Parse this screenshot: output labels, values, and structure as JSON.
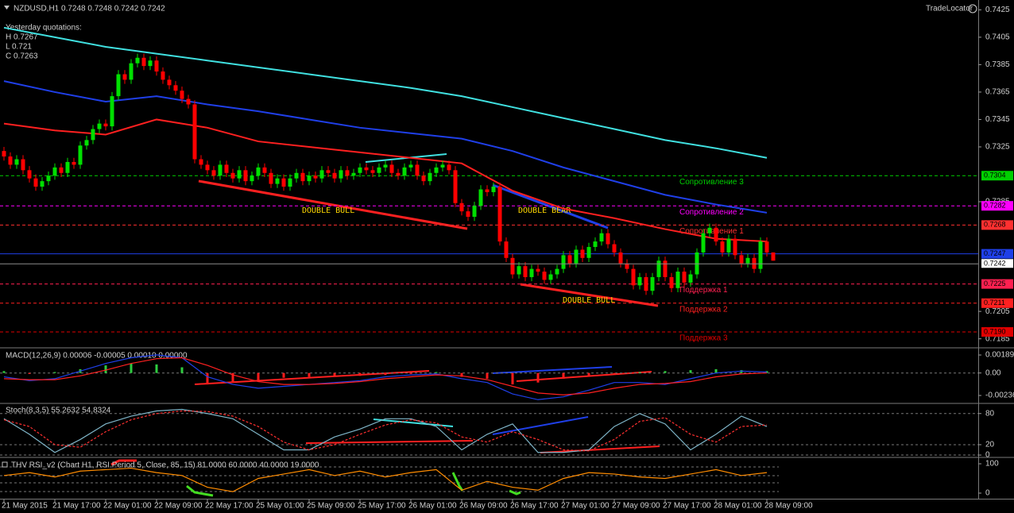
{
  "chart_data": [
    {
      "type": "candlestick",
      "title": "NZDUSD,H1  0.7248 0.7248 0.7242 0.7242",
      "brand": "TradeLocator",
      "notes": [
        "Yesterday quotations:",
        "H 0.7267",
        "L 0.721",
        "C 0.7263"
      ],
      "annotations": [
        "DOUBLE BULL",
        "DOUBLE BEAR",
        "DOUBLE BULL"
      ],
      "categories": [
        "21 May 2015",
        "21 May 17:00",
        "22 May 01:00",
        "22 May 09:00",
        "22 May 17:00",
        "25 May 01:00",
        "25 May 09:00",
        "25 May 17:00",
        "26 May 01:00",
        "26 May 09:00",
        "26 May 17:00",
        "27 May 01:00",
        "27 May 09:00",
        "27 May 17:00",
        "28 May 01:00",
        "28 May 09:00"
      ],
      "up_color": "#00e000",
      "down_color": "#ff0000",
      "ylim": [
        0.7179,
        0.7431
      ],
      "yticks": [
        0.7425,
        0.7405,
        0.7385,
        0.7365,
        0.7345,
        0.7325,
        0.7285,
        0.7205,
        0.7185
      ],
      "open": [
        0.7322,
        0.7318,
        0.7312,
        0.7316,
        0.7308,
        0.7302,
        0.7296,
        0.73,
        0.7304,
        0.731,
        0.7306,
        0.7314,
        0.7312,
        0.7326,
        0.733,
        0.7338,
        0.7342,
        0.734,
        0.7362,
        0.7378,
        0.7374,
        0.7386,
        0.739,
        0.7384,
        0.7388,
        0.738,
        0.7374,
        0.737,
        0.7366,
        0.736,
        0.7356,
        0.7316,
        0.7312,
        0.7308,
        0.7304,
        0.7312,
        0.7306,
        0.7302,
        0.7308,
        0.73,
        0.7304,
        0.731,
        0.7306,
        0.7298,
        0.7302,
        0.7296,
        0.7302,
        0.7306,
        0.73,
        0.7304,
        0.7302,
        0.7308,
        0.7306,
        0.7302,
        0.7308,
        0.7304,
        0.7306,
        0.731,
        0.7308,
        0.7306,
        0.731,
        0.7312,
        0.7306,
        0.7304,
        0.731,
        0.7312,
        0.7304,
        0.73,
        0.7306,
        0.731,
        0.7312,
        0.7308,
        0.7284,
        0.7278,
        0.7274,
        0.7282,
        0.7294,
        0.7292,
        0.7296,
        0.7256,
        0.7244,
        0.7232,
        0.7238,
        0.723,
        0.7236,
        0.7234,
        0.7228,
        0.7232,
        0.7236,
        0.7246,
        0.724,
        0.725,
        0.7244,
        0.7252,
        0.7256,
        0.7262,
        0.7254,
        0.7248,
        0.724,
        0.7236,
        0.7224,
        0.723,
        0.722,
        0.723,
        0.7242,
        0.723,
        0.7222,
        0.7234,
        0.7226,
        0.7232,
        0.7248,
        0.7262,
        0.7266,
        0.7256,
        0.7248,
        0.7258,
        0.7246,
        0.724,
        0.7244,
        0.7236,
        0.7256,
        0.7248
      ],
      "high": [
        0.7325,
        0.7321,
        0.7319,
        0.7319,
        0.7311,
        0.7305,
        0.7303,
        0.7307,
        0.7313,
        0.7313,
        0.7317,
        0.7317,
        0.7329,
        0.7333,
        0.7341,
        0.7345,
        0.7345,
        0.7365,
        0.7381,
        0.7381,
        0.7389,
        0.7393,
        0.7393,
        0.7391,
        0.7391,
        0.7383,
        0.7377,
        0.7373,
        0.7369,
        0.7363,
        0.7359,
        0.7319,
        0.7315,
        0.7311,
        0.7315,
        0.7315,
        0.7309,
        0.7311,
        0.7311,
        0.7307,
        0.7313,
        0.7313,
        0.7309,
        0.7305,
        0.7305,
        0.7305,
        0.7309,
        0.7309,
        0.7307,
        0.7307,
        0.7311,
        0.7311,
        0.7309,
        0.7311,
        0.7311,
        0.7309,
        0.7313,
        0.7313,
        0.7311,
        0.7313,
        0.7315,
        0.7315,
        0.7309,
        0.7313,
        0.7315,
        0.7315,
        0.7307,
        0.7309,
        0.7313,
        0.7315,
        0.7315,
        0.7311,
        0.7287,
        0.7281,
        0.7285,
        0.7297,
        0.7297,
        0.7299,
        0.7299,
        0.7259,
        0.7247,
        0.7241,
        0.7241,
        0.7239,
        0.7239,
        0.7237,
        0.7235,
        0.7239,
        0.7249,
        0.7249,
        0.7253,
        0.7253,
        0.7255,
        0.7259,
        0.7265,
        0.7265,
        0.7257,
        0.7251,
        0.7243,
        0.7239,
        0.7233,
        0.7233,
        0.7233,
        0.7245,
        0.7245,
        0.7233,
        0.7237,
        0.7237,
        0.7235,
        0.7251,
        0.7265,
        0.7269,
        0.7269,
        0.7259,
        0.7261,
        0.7261,
        0.7249,
        0.7247,
        0.7247,
        0.7259,
        0.7259,
        0.7248
      ],
      "low": [
        0.7315,
        0.7309,
        0.7309,
        0.7305,
        0.7299,
        0.7293,
        0.7293,
        0.7297,
        0.7301,
        0.7303,
        0.7303,
        0.7309,
        0.7309,
        0.7323,
        0.7327,
        0.7335,
        0.7337,
        0.7337,
        0.7359,
        0.7371,
        0.7371,
        0.7383,
        0.7381,
        0.7381,
        0.7377,
        0.7371,
        0.7367,
        0.7363,
        0.7357,
        0.7353,
        0.7313,
        0.7309,
        0.7305,
        0.7301,
        0.7301,
        0.7303,
        0.7299,
        0.7299,
        0.7297,
        0.7297,
        0.7301,
        0.7303,
        0.7295,
        0.7295,
        0.7293,
        0.7293,
        0.7299,
        0.7297,
        0.7297,
        0.7299,
        0.7299,
        0.7303,
        0.7299,
        0.7299,
        0.7301,
        0.7301,
        0.7303,
        0.7305,
        0.7303,
        0.7303,
        0.7307,
        0.7303,
        0.7301,
        0.7301,
        0.7307,
        0.7301,
        0.7297,
        0.7297,
        0.7303,
        0.7307,
        0.7305,
        0.7281,
        0.7275,
        0.7271,
        0.7271,
        0.7279,
        0.7289,
        0.7289,
        0.7253,
        0.7241,
        0.7229,
        0.7229,
        0.7227,
        0.7227,
        0.7231,
        0.7225,
        0.7225,
        0.7229,
        0.7233,
        0.7237,
        0.7237,
        0.7241,
        0.7241,
        0.7249,
        0.7253,
        0.7251,
        0.7245,
        0.7237,
        0.7233,
        0.7221,
        0.7221,
        0.7217,
        0.7217,
        0.7227,
        0.7227,
        0.7219,
        0.7219,
        0.7223,
        0.7223,
        0.7229,
        0.7245,
        0.7259,
        0.7253,
        0.7245,
        0.7245,
        0.7243,
        0.7237,
        0.7237,
        0.7233,
        0.7233,
        0.7245,
        0.7242
      ],
      "close": [
        0.7318,
        0.7312,
        0.7316,
        0.7308,
        0.7302,
        0.7296,
        0.73,
        0.7304,
        0.731,
        0.7306,
        0.7314,
        0.7312,
        0.7326,
        0.733,
        0.7338,
        0.7342,
        0.734,
        0.7362,
        0.7378,
        0.7374,
        0.7386,
        0.739,
        0.7384,
        0.7388,
        0.738,
        0.7374,
        0.737,
        0.7366,
        0.736,
        0.7356,
        0.7316,
        0.7312,
        0.7308,
        0.7304,
        0.7312,
        0.7306,
        0.7302,
        0.7308,
        0.73,
        0.7304,
        0.731,
        0.7306,
        0.7298,
        0.7302,
        0.7296,
        0.7302,
        0.7306,
        0.73,
        0.7304,
        0.7302,
        0.7308,
        0.7306,
        0.7302,
        0.7308,
        0.7304,
        0.7306,
        0.731,
        0.7308,
        0.7306,
        0.731,
        0.7312,
        0.7306,
        0.7304,
        0.731,
        0.7312,
        0.7304,
        0.73,
        0.7306,
        0.731,
        0.7312,
        0.7308,
        0.7284,
        0.7278,
        0.7274,
        0.7282,
        0.7294,
        0.7292,
        0.7296,
        0.7256,
        0.7244,
        0.7232,
        0.7238,
        0.723,
        0.7236,
        0.7234,
        0.7228,
        0.7232,
        0.7236,
        0.7246,
        0.724,
        0.725,
        0.7244,
        0.7252,
        0.7256,
        0.7262,
        0.7254,
        0.7248,
        0.724,
        0.7236,
        0.7224,
        0.723,
        0.722,
        0.723,
        0.7242,
        0.723,
        0.7222,
        0.7234,
        0.7226,
        0.7232,
        0.7248,
        0.7262,
        0.7266,
        0.7256,
        0.7248,
        0.7258,
        0.7246,
        0.724,
        0.7244,
        0.7236,
        0.7256,
        0.7248,
        0.7242
      ],
      "moving_averages": {
        "x": [
          0,
          8,
          16,
          24,
          32,
          40,
          48,
          56,
          64,
          72,
          80,
          88,
          96,
          104,
          112,
          120
        ],
        "series": [
          {
            "color": "#40e0e0",
            "values": [
              0.7412,
              0.7405,
              0.7398,
              0.7393,
              0.7388,
              0.7383,
              0.7378,
              0.7373,
              0.7368,
              0.7362,
              0.7354,
              0.7346,
              0.7338,
              0.733,
              0.7324,
              0.7317
            ]
          },
          {
            "color": "#1f3fe8",
            "values": [
              0.7373,
              0.7365,
              0.7358,
              0.7362,
              0.7356,
              0.7351,
              0.7345,
              0.7339,
              0.7335,
              0.7331,
              0.7322,
              0.731,
              0.73,
              0.729,
              0.7283,
              0.7277
            ]
          },
          {
            "color": "#ff2020",
            "values": [
              0.7342,
              0.7337,
              0.7334,
              0.7345,
              0.7339,
              0.7329,
              0.7325,
              0.7321,
              0.7317,
              0.7313,
              0.7293,
              0.728,
              0.7273,
              0.7265,
              0.7258,
              0.7256
            ]
          }
        ]
      },
      "levels": [
        {
          "value": 0.7304,
          "text": "Сопротивление 3",
          "color": "#00d000"
        },
        {
          "value": 0.7282,
          "text": "Сопротивление 2",
          "color": "#ff00ff"
        },
        {
          "value": 0.7268,
          "text": "Сопротивление 1",
          "color": "#ff3030"
        },
        {
          "value": 0.7247,
          "color": "#1f3fe8"
        },
        {
          "value": 0.7225,
          "text": "Поддержка 1",
          "color": "#ff2050"
        },
        {
          "value": 0.7211,
          "text": "Поддержка 2",
          "color": "#ff2020"
        },
        {
          "value": 0.719,
          "label": "0.7190",
          "text": "Поддержка 3",
          "color": "#e00000"
        }
      ],
      "last_price": 0.7242
    },
    {
      "type": "macd",
      "title": "MACD(12,26,9) 0.00006 -0.00005 0.00010 0.00000",
      "ylim": [
        -0.00311,
        0.00256
      ],
      "yticks": [
        0.00189,
        {
          "value": 0,
          "label": "0.00"
        },
        -0.00236
      ],
      "up_color": "#2ecc40",
      "down_color": "#ff1a1a",
      "x": [
        0,
        4,
        8,
        12,
        16,
        20,
        24,
        28,
        32,
        36,
        40,
        44,
        48,
        52,
        56,
        60,
        64,
        68,
        72,
        76,
        80,
        84,
        88,
        92,
        96,
        100,
        104,
        108,
        112,
        116,
        120
      ],
      "histogram": [
        0.0002,
        -0.0001,
        0.0001,
        0.0004,
        0.0008,
        0.001,
        0.0009,
        0.0006,
        -0.0012,
        -0.001,
        -0.0008,
        -0.0005,
        -0.0004,
        -0.0003,
        -0.0003,
        -0.0002,
        -0.0001,
        0.0001,
        -0.0004,
        -0.0006,
        -0.0012,
        -0.001,
        -0.0006,
        -0.0003,
        -0.0001,
        0.0001,
        0.0002,
        0.0003,
        0.0004,
        0.0003,
        0.0002
      ],
      "series": [
        {
          "color": "#1f3fe8",
          "values": [
            -0.0004,
            -0.0008,
            -0.0006,
            0.0002,
            0.001,
            0.0016,
            0.0019,
            0.0016,
            -0.0004,
            -0.0012,
            -0.0016,
            -0.0014,
            -0.0012,
            -0.001,
            -0.0008,
            -0.0004,
            -0.0002,
            -0.0001,
            -0.0006,
            -0.001,
            -0.0022,
            -0.0028,
            -0.0025,
            -0.0018,
            -0.001,
            -0.001,
            -0.0012,
            -0.0006,
            0,
            0.0002,
            0.0001
          ]
        },
        {
          "color": "#ff2020",
          "values": [
            -0.0006,
            -0.0007,
            -0.0007,
            -0.0003,
            0.0003,
            0.001,
            0.0015,
            0.0016,
            0.0008,
            -0.0002,
            -0.0009,
            -0.0012,
            -0.0012,
            -0.0011,
            -0.0009,
            -0.0006,
            -0.0004,
            -0.0002,
            -0.0003,
            -0.0007,
            -0.0014,
            -0.0021,
            -0.0023,
            -0.0021,
            -0.0016,
            -0.0012,
            -0.0011,
            -0.0009,
            -0.0004,
            -0.0001,
            0
          ]
        }
      ]
    },
    {
      "type": "line",
      "title": "Stoch(8,3,5) 55.2632 54.8324",
      "ylim": [
        -3,
        98
      ],
      "yticks": [
        80,
        20,
        0
      ],
      "grid": true,
      "x": [
        0,
        4,
        8,
        12,
        16,
        20,
        24,
        28,
        32,
        36,
        40,
        44,
        48,
        52,
        56,
        60,
        64,
        68,
        72,
        76,
        80,
        84,
        88,
        92,
        96,
        100,
        104,
        108,
        112,
        116,
        120
      ],
      "series": [
        {
          "color": "#7fb5c8",
          "values": [
            70,
            40,
            5,
            30,
            60,
            75,
            85,
            88,
            80,
            70,
            40,
            10,
            10,
            35,
            50,
            70,
            70,
            55,
            10,
            40,
            60,
            5,
            5,
            10,
            55,
            80,
            60,
            10,
            40,
            75,
            55
          ]
        },
        {
          "color": "#ff3030",
          "dashed": true,
          "values": [
            68,
            55,
            20,
            15,
            45,
            68,
            80,
            85,
            84,
            75,
            55,
            25,
            10,
            20,
            40,
            58,
            68,
            62,
            35,
            25,
            45,
            30,
            10,
            8,
            30,
            65,
            72,
            40,
            25,
            55,
            58
          ]
        }
      ]
    },
    {
      "type": "line",
      "title": "THV RSI_v2  (Chart H1, RSI Period 5, Close, 85, 15)  81.0000 60.0000 40.0000 19.0000",
      "ylim": [
        -19,
        119
      ],
      "yticks": [
        100,
        0
      ],
      "grid": false,
      "x": [
        0,
        4,
        8,
        12,
        16,
        20,
        24,
        28,
        32,
        36,
        40,
        44,
        48,
        52,
        56,
        60,
        64,
        68,
        72,
        76,
        80,
        84,
        88,
        92,
        96,
        100,
        104,
        108,
        112,
        116,
        120
      ],
      "series": [
        {
          "color": "#ff8c00",
          "values": [
            60,
            70,
            55,
            75,
            80,
            85,
            70,
            60,
            20,
            5,
            50,
            65,
            80,
            60,
            75,
            55,
            70,
            80,
            10,
            40,
            20,
            10,
            50,
            70,
            65,
            55,
            50,
            65,
            80,
            60,
            70
          ]
        }
      ]
    }
  ]
}
